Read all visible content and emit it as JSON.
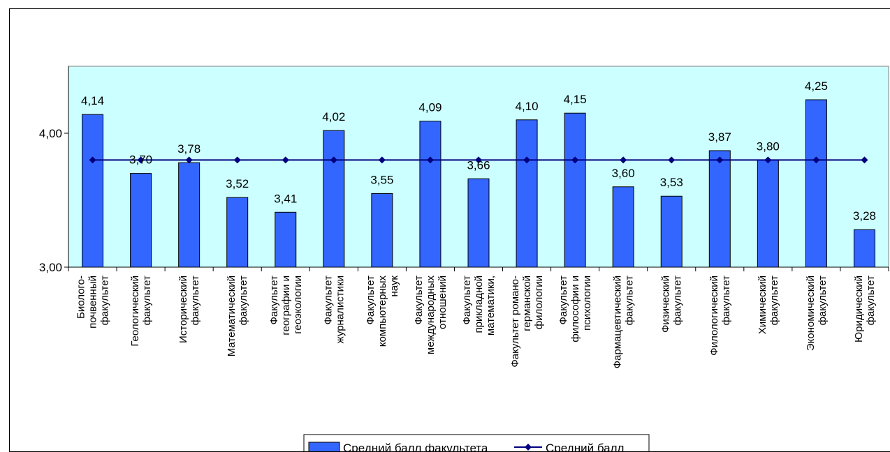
{
  "chart_data": {
    "type": "bar",
    "categories": [
      [
        "Биолого-",
        "почвенный",
        "факультет"
      ],
      [
        "Геологический",
        "факультет"
      ],
      [
        "Исторический",
        "факультет"
      ],
      [
        "Математический",
        "факультет"
      ],
      [
        "Факультет",
        "географии и",
        "геоэкологии"
      ],
      [
        "Факультет",
        "журналистики"
      ],
      [
        "Факультет",
        "компьютерных",
        "наук"
      ],
      [
        "Факультет",
        "международных",
        "отношений"
      ],
      [
        "Факультет",
        "прикладной",
        "математики,"
      ],
      [
        "Факультет романо-",
        "германской",
        "филологии"
      ],
      [
        "Факультет",
        "философии и",
        "психологии"
      ],
      [
        "Фармацевтический",
        "факультет"
      ],
      [
        "Физический",
        "факультет"
      ],
      [
        "Филологический",
        "факультет"
      ],
      [
        "Химический",
        "факультет"
      ],
      [
        "Экономический",
        "факультет"
      ],
      [
        "Юридический",
        "факультет"
      ]
    ],
    "series": [
      {
        "name": "Средний балл факультета",
        "kind": "bar",
        "color": "#3366ff",
        "values": [
          4.14,
          3.7,
          3.78,
          3.52,
          3.41,
          4.02,
          3.55,
          4.09,
          3.66,
          4.1,
          4.15,
          3.6,
          3.53,
          3.87,
          3.8,
          4.25,
          3.28
        ],
        "labels": [
          "4,14",
          "3,70",
          "3,78",
          "3,52",
          "3,41",
          "4,02",
          "3,55",
          "4,09",
          "3,66",
          "4,10",
          "4,15",
          "3,60",
          "3,53",
          "3,87",
          "3,80",
          "4,25",
          "3,28"
        ]
      },
      {
        "name": "Средний балл",
        "kind": "line",
        "color": "#000080",
        "values": [
          3.8,
          3.8,
          3.8,
          3.8,
          3.8,
          3.8,
          3.8,
          3.8,
          3.8,
          3.8,
          3.8,
          3.8,
          3.8,
          3.8,
          3.8,
          3.8,
          3.8
        ]
      }
    ],
    "ylim": [
      3.0,
      4.5
    ],
    "yticks": [
      3.0,
      4.0
    ],
    "ytick_labels": [
      "3,00",
      "4,00"
    ],
    "plot_background": "#ccffff",
    "grid": false,
    "legend_position": "bottom"
  }
}
